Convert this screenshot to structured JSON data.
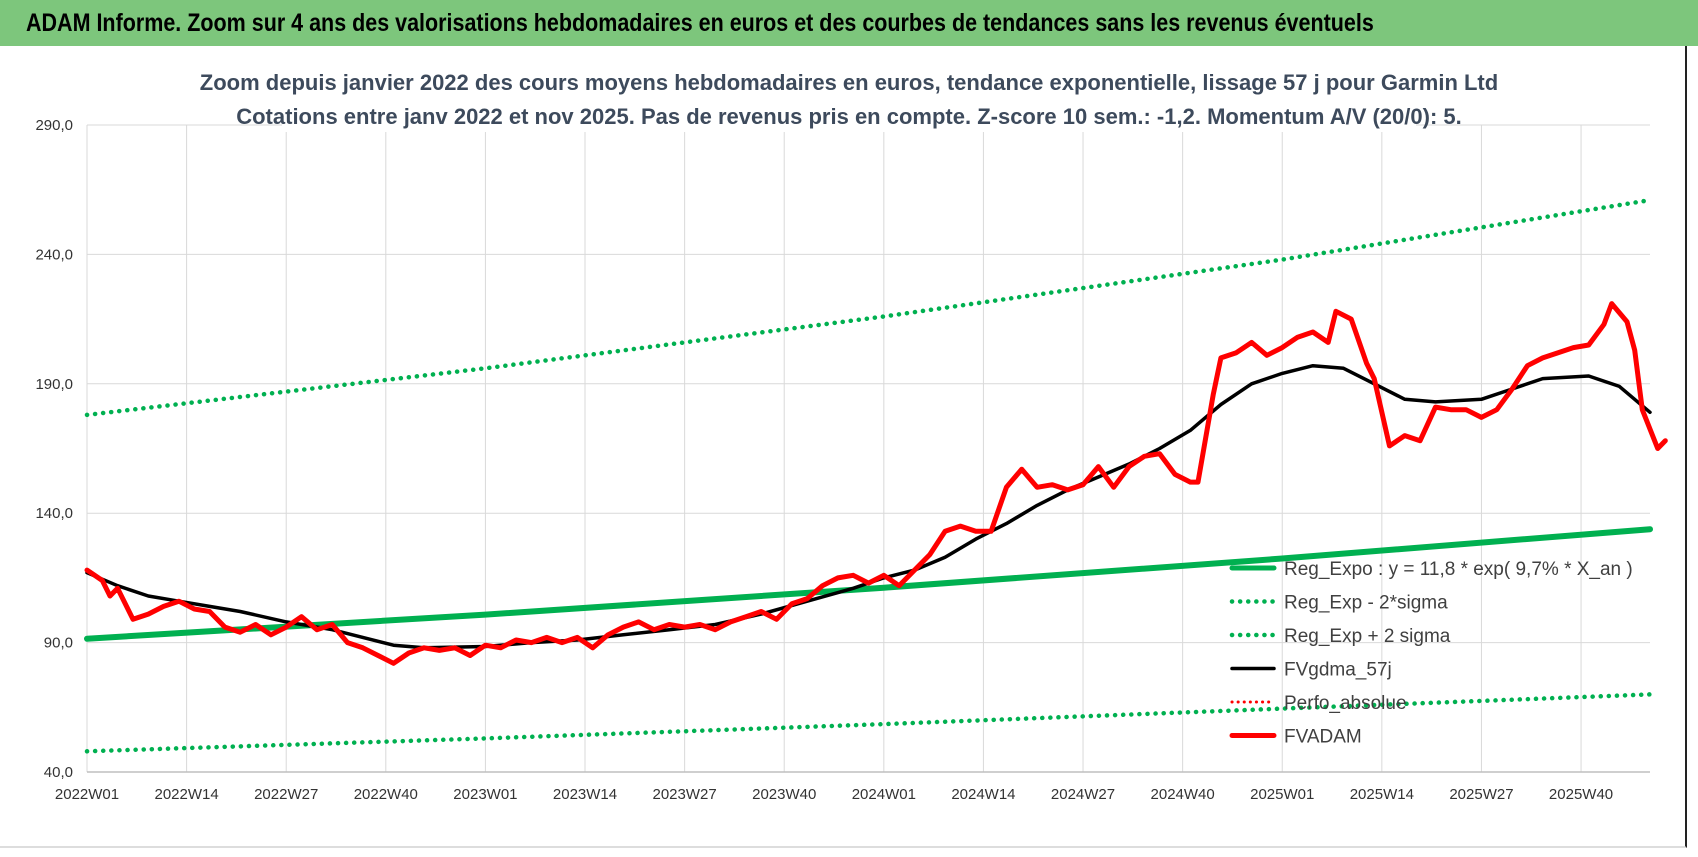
{
  "banner": {
    "title": "ADAM Informe. Zoom sur 4 ans des valorisations hebdomadaires en euros et des courbes de tendances sans les revenus éventuels",
    "color": "#7dc67c"
  },
  "chart_data": {
    "type": "line",
    "title_lines": [
      "Zoom depuis janvier 2022 des cours moyens hebdomadaires en euros, tendance exponentielle, lissage 57 j pour Garmin Ltd",
      "Cotations entre janv 2022 et nov 2025. Pas de revenus pris en compte. Z-score 10 sem.: -1,2. Momentum A/V (20/0): 5."
    ],
    "ylim": [
      40,
      290
    ],
    "y_ticks": [
      "40,0",
      "90,0",
      "140,0",
      "190,0",
      "240,0",
      "290,0"
    ],
    "y_tick_values": [
      40,
      90,
      140,
      190,
      240,
      290
    ],
    "x_ticks": [
      "2022W01",
      "2022W14",
      "2022W27",
      "2022W40",
      "2023W01",
      "2023W14",
      "2023W27",
      "2023W40",
      "2024W01",
      "2024W14",
      "2024W27",
      "2024W40",
      "2025W01",
      "2025W14",
      "2025W27",
      "2025W40"
    ],
    "x_tick_weeks": [
      0,
      13,
      26,
      39,
      52,
      65,
      78,
      91,
      104,
      117,
      130,
      143,
      156,
      169,
      182,
      195
    ],
    "x_max_week": 204,
    "grid": true,
    "legend_position": "bottom-right",
    "series": [
      {
        "name": "Reg_Expo : y = 11,8 * exp( 9,7% *  X_an )",
        "color": "#00b050",
        "style": "solid",
        "points": [
          [
            0,
            91.5
          ],
          [
            52,
            100.8
          ],
          [
            104,
            111.2
          ],
          [
            156,
            122.5
          ],
          [
            204,
            133.8
          ]
        ]
      },
      {
        "name": "Reg_Exp - 2*sigma",
        "color": "#00b050",
        "style": "dotted",
        "points": [
          [
            0,
            48
          ],
          [
            52,
            53
          ],
          [
            104,
            58.5
          ],
          [
            156,
            64.5
          ],
          [
            204,
            70
          ]
        ]
      },
      {
        "name": "Reg_Exp + 2 sigma",
        "color": "#00b050",
        "style": "dotted",
        "points": [
          [
            0,
            178
          ],
          [
            52,
            196
          ],
          [
            104,
            216
          ],
          [
            156,
            238
          ],
          [
            204,
            261
          ]
        ]
      },
      {
        "name": "FVgdma_57j",
        "color": "#000000",
        "style": "solid",
        "points": [
          [
            0,
            117
          ],
          [
            4,
            112
          ],
          [
            8,
            108
          ],
          [
            12,
            106
          ],
          [
            16,
            104
          ],
          [
            20,
            102
          ],
          [
            26,
            98
          ],
          [
            32,
            95
          ],
          [
            36,
            92
          ],
          [
            40,
            89
          ],
          [
            44,
            88
          ],
          [
            52,
            88.5
          ],
          [
            58,
            90
          ],
          [
            64,
            91
          ],
          [
            70,
            93
          ],
          [
            76,
            95
          ],
          [
            82,
            97
          ],
          [
            88,
            101
          ],
          [
            94,
            106
          ],
          [
            100,
            111
          ],
          [
            104,
            115
          ],
          [
            108,
            118
          ],
          [
            112,
            123
          ],
          [
            116,
            130
          ],
          [
            120,
            136
          ],
          [
            124,
            143
          ],
          [
            128,
            149
          ],
          [
            132,
            154
          ],
          [
            136,
            159
          ],
          [
            140,
            165
          ],
          [
            144,
            172
          ],
          [
            148,
            182
          ],
          [
            152,
            190
          ],
          [
            156,
            194
          ],
          [
            160,
            197
          ],
          [
            164,
            196
          ],
          [
            168,
            190
          ],
          [
            172,
            184
          ],
          [
            176,
            183
          ],
          [
            182,
            184
          ],
          [
            186,
            188
          ],
          [
            190,
            192
          ],
          [
            196,
            193
          ],
          [
            200,
            189
          ],
          [
            204,
            179
          ]
        ]
      },
      {
        "name": "Perfo_absolue",
        "color": "#ff0000",
        "style": "dotted",
        "points": []
      },
      {
        "name": "FVADAM",
        "color": "#ff0000",
        "style": "solid",
        "points": [
          [
            0,
            118
          ],
          [
            2,
            114
          ],
          [
            3,
            108
          ],
          [
            4,
            111
          ],
          [
            6,
            99
          ],
          [
            8,
            101
          ],
          [
            10,
            104
          ],
          [
            12,
            106
          ],
          [
            14,
            103
          ],
          [
            16,
            102
          ],
          [
            18,
            96
          ],
          [
            20,
            94
          ],
          [
            22,
            97
          ],
          [
            24,
            93
          ],
          [
            26,
            96
          ],
          [
            28,
            100
          ],
          [
            30,
            95
          ],
          [
            32,
            97
          ],
          [
            34,
            90
          ],
          [
            36,
            88
          ],
          [
            38,
            85
          ],
          [
            40,
            82
          ],
          [
            42,
            86
          ],
          [
            44,
            88
          ],
          [
            46,
            87
          ],
          [
            48,
            88
          ],
          [
            50,
            85
          ],
          [
            52,
            89
          ],
          [
            54,
            88
          ],
          [
            56,
            91
          ],
          [
            58,
            90
          ],
          [
            60,
            92
          ],
          [
            62,
            90
          ],
          [
            64,
            92
          ],
          [
            66,
            88
          ],
          [
            68,
            93
          ],
          [
            70,
            96
          ],
          [
            72,
            98
          ],
          [
            74,
            95
          ],
          [
            76,
            97
          ],
          [
            78,
            96
          ],
          [
            80,
            97
          ],
          [
            82,
            95
          ],
          [
            84,
            98
          ],
          [
            86,
            100
          ],
          [
            88,
            102
          ],
          [
            90,
            99
          ],
          [
            92,
            105
          ],
          [
            94,
            107
          ],
          [
            96,
            112
          ],
          [
            98,
            115
          ],
          [
            100,
            116
          ],
          [
            102,
            113
          ],
          [
            104,
            116
          ],
          [
            106,
            112
          ],
          [
            108,
            118
          ],
          [
            110,
            124
          ],
          [
            112,
            133
          ],
          [
            114,
            135
          ],
          [
            116,
            133
          ],
          [
            118,
            133
          ],
          [
            120,
            150
          ],
          [
            122,
            157
          ],
          [
            124,
            150
          ],
          [
            126,
            151
          ],
          [
            128,
            149
          ],
          [
            130,
            151
          ],
          [
            132,
            158
          ],
          [
            134,
            150
          ],
          [
            136,
            158
          ],
          [
            138,
            162
          ],
          [
            140,
            163
          ],
          [
            142,
            155
          ],
          [
            144,
            152
          ],
          [
            145,
            152
          ],
          [
            147,
            186
          ],
          [
            148,
            200
          ],
          [
            150,
            202
          ],
          [
            152,
            206
          ],
          [
            154,
            201
          ],
          [
            156,
            204
          ],
          [
            158,
            208
          ],
          [
            160,
            210
          ],
          [
            162,
            206
          ],
          [
            163,
            218
          ],
          [
            165,
            215
          ],
          [
            167,
            198
          ],
          [
            168,
            192
          ],
          [
            170,
            166
          ],
          [
            172,
            170
          ],
          [
            174,
            168
          ],
          [
            176,
            181
          ],
          [
            178,
            180
          ],
          [
            180,
            180
          ],
          [
            182,
            177
          ],
          [
            184,
            180
          ],
          [
            186,
            188
          ],
          [
            188,
            197
          ],
          [
            190,
            200
          ],
          [
            192,
            202
          ],
          [
            194,
            204
          ],
          [
            196,
            205
          ],
          [
            198,
            213
          ],
          [
            199,
            221
          ],
          [
            201,
            214
          ],
          [
            202,
            203
          ],
          [
            203,
            180
          ],
          [
            205,
            165
          ],
          [
            206,
            168
          ]
        ]
      }
    ]
  }
}
